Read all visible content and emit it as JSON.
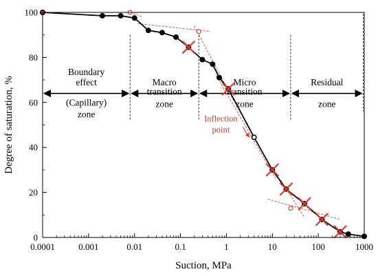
{
  "chart_data": {
    "type": "scatter",
    "title": "",
    "xlabel": "Suction, MPa",
    "ylabel": "Degree of saturation, %",
    "x_scale": "log",
    "xlim": [
      0.0001,
      1000
    ],
    "ylim": [
      0,
      100
    ],
    "x_ticks": [
      0.0001,
      0.001,
      0.01,
      0.1,
      1,
      10,
      100,
      1000
    ],
    "x_tick_labels": [
      "0.0001",
      "0.001",
      "0.01",
      "0.1",
      "1",
      "10",
      "100",
      "1000"
    ],
    "y_ticks": [
      0,
      20,
      40,
      60,
      80,
      100
    ],
    "y_tick_labels": [
      "0",
      "20",
      "40",
      "60",
      "80",
      "100"
    ],
    "grid": false,
    "legend": "none",
    "series": [
      {
        "color": "#000000",
        "marker": "filled-circle",
        "line": "solid",
        "x": [
          0.0001,
          0.002,
          0.005,
          0.01,
          0.02,
          0.04,
          0.08,
          0.15,
          0.3,
          0.5,
          0.7,
          1.1,
          4,
          10,
          20,
          50,
          120,
          300,
          450,
          1000
        ],
        "y": [
          100,
          98.5,
          98.5,
          97.5,
          92,
          91,
          89,
          84.5,
          79,
          77,
          71,
          66,
          44.5,
          30,
          21.5,
          15,
          8,
          2.5,
          1.5,
          0.5
        ]
      }
    ],
    "zone_boundaries_x": [
      0.008,
      0.25,
      25,
      950
    ],
    "zones": [
      {
        "label": [
          "Boundary",
          "effect",
          "(Capillary)",
          "zone"
        ],
        "x_from": 0.0001,
        "x_to": 0.008
      },
      {
        "label": [
          "Macro",
          "transition",
          "zone"
        ],
        "x_from": 0.008,
        "x_to": 0.25
      },
      {
        "label": [
          "Micro",
          "transition",
          "zone"
        ],
        "x_from": 0.25,
        "x_to": 25
      },
      {
        "label": [
          "Residual",
          "zone"
        ],
        "x_from": 25,
        "x_to": 950
      }
    ],
    "zone_arrow_y": 64,
    "construction_lines": [
      {
        "x": [
          0.0001,
          0.008
        ],
        "y": [
          100,
          100
        ]
      },
      {
        "x": [
          0.008,
          0.015
        ],
        "y": [
          100,
          98
        ]
      },
      {
        "x": [
          0.012,
          0.45
        ],
        "y": [
          95,
          91.5
        ]
      },
      {
        "x": [
          0.2,
          1.5
        ],
        "y": [
          94,
          60
        ]
      },
      {
        "x": [
          0.6,
          12
        ],
        "y": [
          72,
          26
        ]
      },
      {
        "x": [
          15,
          50
        ],
        "y": [
          25.5,
          9
        ]
      },
      {
        "x": [
          8,
          300
        ],
        "y": [
          17,
          8
        ]
      }
    ],
    "open_markers": [
      {
        "x": 0.008,
        "y": 100
      },
      {
        "x": 0.25,
        "y": 91.5
      },
      {
        "x": 4,
        "y": 44.5
      },
      {
        "x": 25,
        "y": 13
      }
    ],
    "cross_markers": [
      {
        "x": 0.15,
        "y": 84.5
      },
      {
        "x": 1.1,
        "y": 66
      },
      {
        "x": 10,
        "y": 30
      },
      {
        "x": 20,
        "y": 21.5
      },
      {
        "x": 50,
        "y": 15
      },
      {
        "x": 120,
        "y": 8
      },
      {
        "x": 300,
        "y": 2.5
      }
    ],
    "annotations": [
      {
        "lines": [
          "Inflection",
          "point"
        ],
        "x": 0.9,
        "y": 51.5,
        "arrow_to": {
          "x": 3.6,
          "y": 44.5
        }
      }
    ],
    "colors": {
      "data": "#000000",
      "construction": "#e03c31",
      "text_annotation": "#c0392b"
    }
  }
}
